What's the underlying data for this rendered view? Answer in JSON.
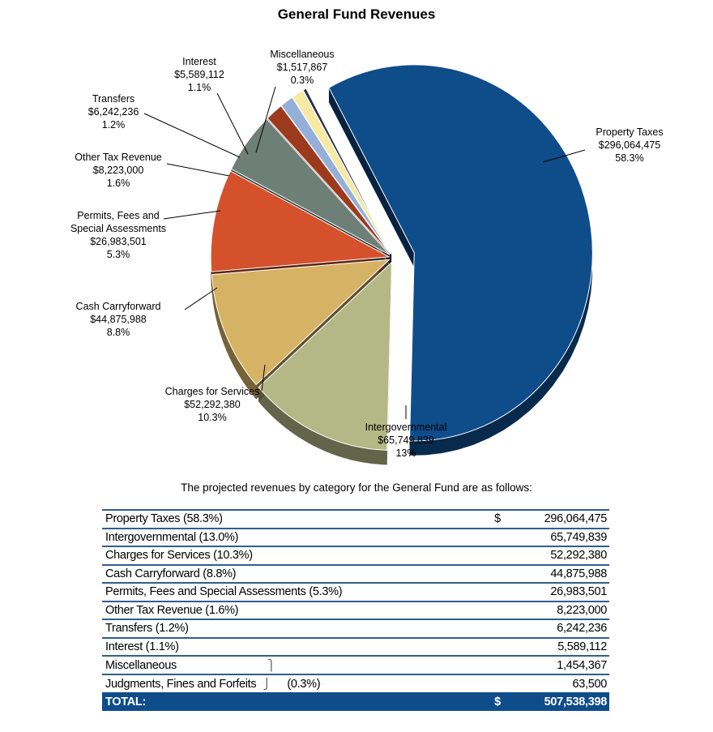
{
  "chart_data": {
    "type": "pie",
    "title": "General Fund Revenues",
    "slices": [
      {
        "label": "Property Taxes",
        "amount": "$296,064,475",
        "percent": "58.3%",
        "value": 58.3,
        "color": "#0f4c8a"
      },
      {
        "label": "Intergovernmental",
        "amount": "$65,749,839",
        "percent": "13%",
        "value": 13.0,
        "color": "#b3b886"
      },
      {
        "label": "Charges for Services",
        "amount": "$52,292,380",
        "percent": "10.3%",
        "value": 10.3,
        "color": "#d6b265"
      },
      {
        "label": "Cash Carryforward",
        "amount": "$44,875,988",
        "percent": "8.8%",
        "value": 8.8,
        "color": "#d4512b"
      },
      {
        "label": "Permits, Fees and Special Assessments",
        "amount": "$26,983,501",
        "percent": "5.3%",
        "value": 5.3,
        "color": "#6d7f76"
      },
      {
        "label": "Other Tax Revenue",
        "amount": "$8,223,000",
        "percent": "1.6%",
        "value": 1.6,
        "color": "#9c3a1e"
      },
      {
        "label": "Transfers",
        "amount": "$6,242,236",
        "percent": "1.2%",
        "value": 1.2,
        "color": "#94b0d8"
      },
      {
        "label": "Interest",
        "amount": "$5,589,112",
        "percent": "1.1%",
        "value": 1.1,
        "color": "#f5e9a4"
      },
      {
        "label": "Miscellaneous",
        "amount": "$1,517,867",
        "percent": "0.3%",
        "value": 0.3,
        "color": "#2a2f4a"
      }
    ]
  },
  "intro_text": "The projected revenues by category for the General Fund are as follows:",
  "table": {
    "rows": [
      {
        "label": "Property Taxes (58.3%)",
        "currency": "$",
        "amount": "296,064,475"
      },
      {
        "label": "Intergovernmental (13.0%)",
        "currency": "",
        "amount": "65,749,839"
      },
      {
        "label": "Charges for Services (10.3%)",
        "currency": "",
        "amount": "52,292,380"
      },
      {
        "label": "Cash Carryforward (8.8%)",
        "currency": "",
        "amount": "44,875,988"
      },
      {
        "label": "Permits, Fees and Special Assessments (5.3%)",
        "currency": "",
        "amount": "26,983,501"
      },
      {
        "label": "Other Tax Revenue (1.6%)",
        "currency": "",
        "amount": "8,223,000"
      },
      {
        "label": "Transfers (1.2%)",
        "currency": "",
        "amount": "6,242,236"
      },
      {
        "label": "Interest (1.1%)",
        "currency": "",
        "amount": "5,589,112"
      },
      {
        "label": "Miscellaneous",
        "currency": "",
        "amount": "1,454,367"
      },
      {
        "label": "Judgments, Fines and Forfeits",
        "currency": "",
        "amount": "63,500"
      }
    ],
    "group_note": "(0.3%)",
    "total": {
      "label": "TOTAL:",
      "currency": "$",
      "amount": "507,538,398"
    }
  }
}
